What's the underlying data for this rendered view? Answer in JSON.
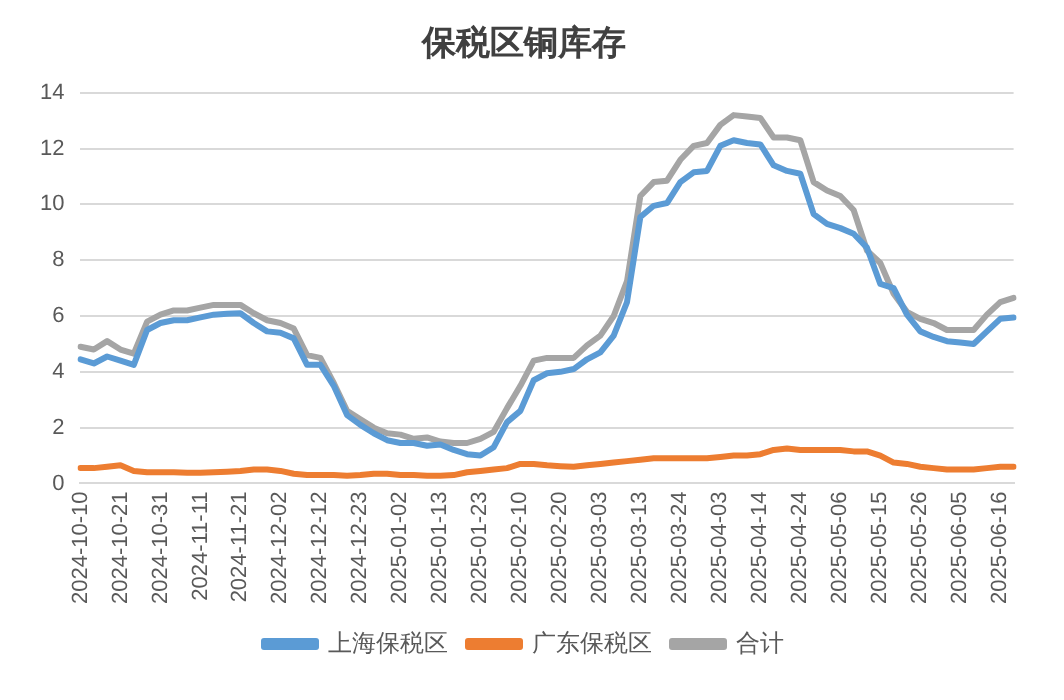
{
  "chart_data": {
    "type": "line",
    "title": "保税区铜库存",
    "categories": [
      "2024-10-10",
      null,
      null,
      "2024-10-21",
      null,
      null,
      "2024-10-31",
      null,
      null,
      "2024-11-11",
      null,
      null,
      "2024-11-21",
      null,
      null,
      "2024-12-02",
      null,
      null,
      "2024-12-12",
      null,
      null,
      "2024-12-23",
      null,
      null,
      "2025-01-02",
      null,
      null,
      "2025-01-13",
      null,
      null,
      "2025-01-23",
      null,
      null,
      "2025-02-10",
      null,
      null,
      "2025-02-20",
      null,
      null,
      "2025-03-03",
      null,
      null,
      "2025-03-13",
      null,
      null,
      "2025-03-24",
      null,
      null,
      "2025-04-03",
      null,
      null,
      "2025-04-14",
      null,
      null,
      "2025-04-24",
      null,
      null,
      "2025-05-06",
      null,
      null,
      "2025-05-15",
      null,
      null,
      "2025-05-26",
      null,
      null,
      "2025-06-05",
      null,
      null,
      "2025-06-16",
      null
    ],
    "series": [
      {
        "name": "上海保税区",
        "color": "#5b9bd5",
        "values": [
          4.45,
          4.3,
          4.55,
          4.4,
          4.25,
          5.5,
          5.75,
          5.85,
          5.85,
          5.95,
          6.05,
          6.08,
          6.1,
          5.75,
          5.45,
          5.4,
          5.2,
          4.25,
          4.25,
          3.5,
          2.45,
          2.1,
          1.8,
          1.55,
          1.45,
          1.45,
          1.35,
          1.4,
          1.2,
          1.05,
          1.0,
          1.3,
          2.2,
          2.6,
          3.7,
          3.95,
          4.0,
          4.1,
          4.45,
          4.7,
          5.3,
          6.5,
          9.55,
          9.95,
          10.05,
          10.8,
          11.15,
          11.2,
          12.1,
          12.3,
          12.2,
          12.15,
          11.4,
          11.2,
          11.1,
          9.65,
          9.3,
          9.15,
          8.95,
          8.45,
          7.15,
          7.0,
          6.05,
          5.45,
          5.25,
          5.1,
          5.05,
          5.0,
          5.45,
          5.9,
          5.95
        ]
      },
      {
        "name": "广东保税区",
        "color": "#ed7d31",
        "values": [
          0.55,
          0.55,
          0.6,
          0.65,
          0.45,
          0.4,
          0.4,
          0.4,
          0.38,
          0.38,
          0.4,
          0.42,
          0.45,
          0.5,
          0.5,
          0.45,
          0.35,
          0.3,
          0.3,
          0.3,
          0.28,
          0.3,
          0.35,
          0.35,
          0.3,
          0.3,
          0.28,
          0.28,
          0.3,
          0.4,
          0.45,
          0.5,
          0.55,
          0.7,
          0.7,
          0.65,
          0.62,
          0.6,
          0.65,
          0.7,
          0.75,
          0.8,
          0.85,
          0.9,
          0.9,
          0.9,
          0.9,
          0.9,
          0.95,
          1.0,
          1.0,
          1.05,
          1.2,
          1.25,
          1.2,
          1.2,
          1.2,
          1.2,
          1.15,
          1.15,
          1.0,
          0.75,
          0.7,
          0.6,
          0.55,
          0.5,
          0.5,
          0.5,
          0.55,
          0.6,
          0.6
        ]
      },
      {
        "name": "合计",
        "color": "#a5a5a5",
        "values": [
          4.9,
          4.8,
          5.1,
          4.8,
          4.65,
          5.8,
          6.05,
          6.2,
          6.2,
          6.3,
          6.4,
          6.4,
          6.4,
          6.1,
          5.85,
          5.75,
          5.55,
          4.6,
          4.5,
          3.6,
          2.6,
          2.3,
          2.0,
          1.8,
          1.75,
          1.6,
          1.65,
          1.5,
          1.45,
          1.45,
          1.6,
          1.85,
          2.7,
          3.5,
          4.4,
          4.5,
          4.5,
          4.5,
          4.95,
          5.3,
          6.0,
          7.25,
          10.3,
          10.8,
          10.85,
          11.6,
          12.1,
          12.2,
          12.85,
          13.2,
          13.15,
          13.1,
          12.4,
          12.4,
          12.3,
          10.8,
          10.5,
          10.3,
          9.8,
          8.35,
          7.9,
          6.8,
          6.15,
          5.9,
          5.75,
          5.5,
          5.5,
          5.5,
          6.05,
          6.5,
          6.65
        ]
      }
    ],
    "ylim": [
      0,
      14
    ],
    "yticks": [
      0,
      2,
      4,
      6,
      8,
      10,
      12,
      14
    ],
    "grid": "y",
    "legend": "bottom",
    "marker": "none",
    "line_style": "solid"
  }
}
